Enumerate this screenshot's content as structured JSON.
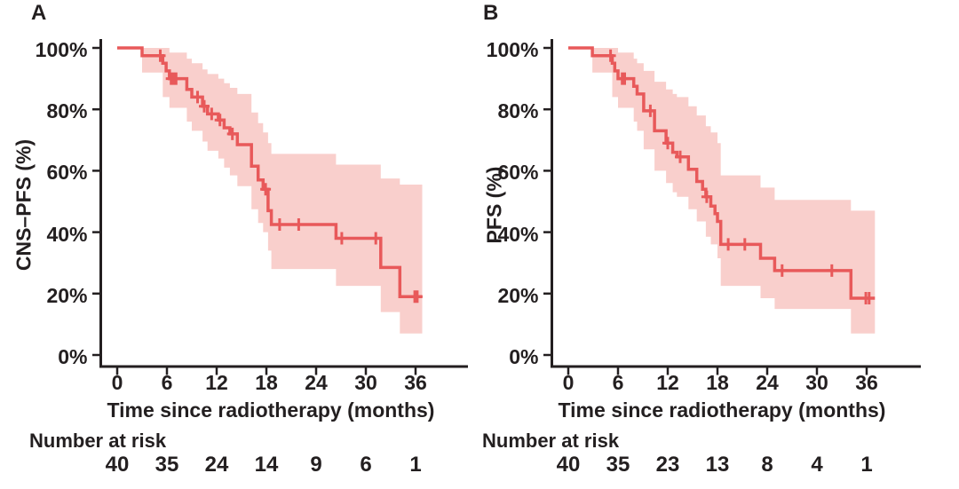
{
  "figure": {
    "background": "#ffffff",
    "axis_color": "#231f20",
    "text_color": "#231f20"
  },
  "chart_data": [
    {
      "type": "line",
      "chart_kind": "kaplan-meier-step-with-confidence-band",
      "panel_letter": "A",
      "ylabel": "CNS–PFS (%)",
      "xlabel": "Time since radiotherapy (months)",
      "xlim": [
        0,
        38
      ],
      "ylim": [
        0,
        100
      ],
      "x_ticks": [
        0,
        6,
        12,
        18,
        24,
        30,
        36
      ],
      "y_tick_labels": [
        "0%",
        "20%",
        "40%",
        "60%",
        "80%",
        "100%"
      ],
      "grid": false,
      "legend": "none",
      "line_color": "#e8595a",
      "band_color": "#f9cfcc",
      "end_time": 36.8,
      "steps": [
        [
          0,
          100
        ],
        [
          3,
          97.5
        ],
        [
          5.5,
          95
        ],
        [
          5.9,
          92.5
        ],
        [
          6.3,
          90
        ],
        [
          8.4,
          86.5
        ],
        [
          9.0,
          84
        ],
        [
          10.3,
          81
        ],
        [
          10.9,
          78.5
        ],
        [
          12.2,
          76.5
        ],
        [
          12.9,
          74
        ],
        [
          13.6,
          72
        ],
        [
          14.5,
          68.5
        ],
        [
          16.2,
          61.5
        ],
        [
          17.0,
          57
        ],
        [
          17.6,
          54
        ],
        [
          18.2,
          47
        ],
        [
          18.6,
          42.5
        ],
        [
          26.4,
          38
        ],
        [
          31.8,
          28.5
        ],
        [
          34.1,
          19
        ]
      ],
      "censors": [
        [
          5.2,
          97.5
        ],
        [
          6.5,
          90
        ],
        [
          6.8,
          90
        ],
        [
          7.1,
          90
        ],
        [
          9.7,
          84
        ],
        [
          10.5,
          81
        ],
        [
          11.4,
          78.5
        ],
        [
          12.4,
          76.5
        ],
        [
          13.9,
          72
        ],
        [
          17.9,
          54
        ],
        [
          19.6,
          42.5
        ],
        [
          21.9,
          42.5
        ],
        [
          27.1,
          38
        ],
        [
          31.2,
          38
        ],
        [
          35.9,
          19
        ],
        [
          36.2,
          19
        ]
      ],
      "band": [
        [
          3,
          92,
          100
        ],
        [
          5.5,
          84,
          100
        ],
        [
          6.3,
          80.5,
          98.5
        ],
        [
          8.4,
          76,
          96.5
        ],
        [
          9.0,
          73,
          95
        ],
        [
          10.3,
          69.5,
          93
        ],
        [
          10.9,
          66.5,
          91.5
        ],
        [
          12.2,
          64,
          90
        ],
        [
          12.9,
          61,
          88.5
        ],
        [
          13.6,
          58.5,
          87
        ],
        [
          14.5,
          55,
          85
        ],
        [
          16.2,
          47.5,
          79
        ],
        [
          17.0,
          43,
          75.5
        ],
        [
          17.6,
          40,
          72.5
        ],
        [
          18.2,
          34,
          69
        ],
        [
          18.6,
          28,
          65.5
        ],
        [
          26.4,
          22.5,
          62
        ],
        [
          31.8,
          14,
          57.5
        ],
        [
          34.1,
          7,
          55.5
        ]
      ],
      "number_at_risk": {
        "label": "Number at risk",
        "times": [
          0,
          6,
          12,
          18,
          24,
          30,
          36
        ],
        "values": [
          40,
          35,
          24,
          14,
          9,
          6,
          1
        ]
      }
    },
    {
      "type": "line",
      "chart_kind": "kaplan-meier-step-with-confidence-band",
      "panel_letter": "B",
      "ylabel": "PFS (%)",
      "xlabel": "Time since radiotherapy (months)",
      "xlim": [
        0,
        38
      ],
      "ylim": [
        0,
        100
      ],
      "x_ticks": [
        0,
        6,
        12,
        18,
        24,
        30,
        36
      ],
      "y_tick_labels": [
        "0%",
        "20%",
        "40%",
        "60%",
        "80%",
        "100%"
      ],
      "grid": false,
      "legend": "none",
      "line_color": "#e8595a",
      "band_color": "#f9cfcc",
      "end_time": 37.0,
      "steps": [
        [
          0,
          100
        ],
        [
          2.9,
          97.5
        ],
        [
          5.3,
          95
        ],
        [
          5.6,
          92.5
        ],
        [
          6.0,
          90
        ],
        [
          7.9,
          87.5
        ],
        [
          8.3,
          85
        ],
        [
          9.1,
          79.5
        ],
        [
          10.4,
          73
        ],
        [
          11.8,
          69
        ],
        [
          12.6,
          66
        ],
        [
          13.1,
          64.5
        ],
        [
          14.5,
          60.5
        ],
        [
          15.5,
          56.5
        ],
        [
          16.2,
          54
        ],
        [
          16.6,
          51.5
        ],
        [
          17.2,
          48.5
        ],
        [
          17.7,
          46
        ],
        [
          18.0,
          43.5
        ],
        [
          18.4,
          36
        ],
        [
          23.2,
          31.5
        ],
        [
          24.9,
          27.5
        ],
        [
          34.1,
          18.5
        ]
      ],
      "censors": [
        [
          5.1,
          97.5
        ],
        [
          6.5,
          90
        ],
        [
          6.8,
          90
        ],
        [
          9.9,
          79.5
        ],
        [
          12.0,
          69
        ],
        [
          13.5,
          64.5
        ],
        [
          16.7,
          51.5
        ],
        [
          19.3,
          36
        ],
        [
          21.3,
          36
        ],
        [
          25.8,
          27.5
        ],
        [
          31.8,
          27.5
        ],
        [
          35.9,
          18.5
        ],
        [
          36.3,
          18.5
        ]
      ],
      "band": [
        [
          2.9,
          92,
          100
        ],
        [
          5.3,
          84,
          100
        ],
        [
          6.0,
          80.5,
          98.5
        ],
        [
          7.9,
          76,
          96.5
        ],
        [
          8.3,
          73,
          95
        ],
        [
          9.1,
          67,
          92.5
        ],
        [
          10.4,
          60,
          89
        ],
        [
          11.8,
          56,
          86.5
        ],
        [
          12.6,
          53,
          85
        ],
        [
          13.1,
          51.5,
          84
        ],
        [
          14.5,
          47.5,
          81
        ],
        [
          15.5,
          43.5,
          78
        ],
        [
          16.6,
          38.5,
          74.5
        ],
        [
          17.2,
          36,
          72.5
        ],
        [
          18.0,
          31.5,
          69
        ],
        [
          18.4,
          22.5,
          58.5
        ],
        [
          23.2,
          18.5,
          54.5
        ],
        [
          24.9,
          15,
          50.5
        ],
        [
          34.1,
          7,
          47
        ]
      ],
      "number_at_risk": {
        "label": "Number at risk",
        "times": [
          0,
          6,
          12,
          18,
          24,
          30,
          36
        ],
        "values": [
          40,
          35,
          23,
          13,
          8,
          4,
          1
        ]
      }
    }
  ]
}
